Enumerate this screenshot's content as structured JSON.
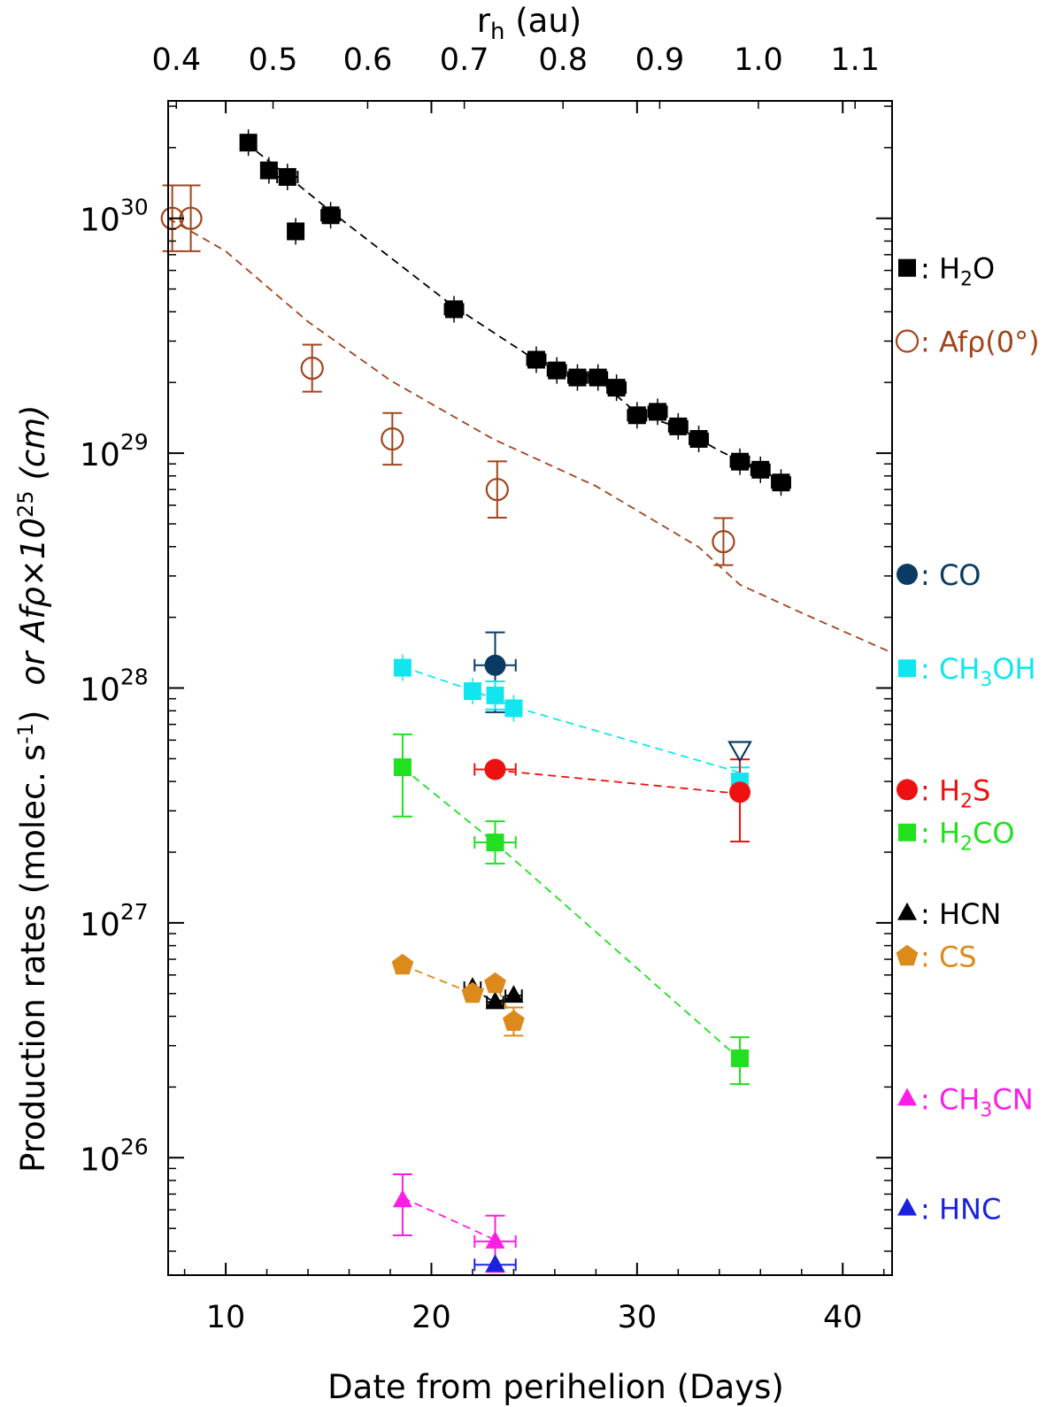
{
  "chart_data": {
    "type": "scatter",
    "xlabel": "Date from perihelion (Days)",
    "ylabel_main": "Production rates (molec. s",
    "ylabel_main_sup": "-1",
    "ylabel_main_end": ")",
    "ylabel_alt": "or Afρ×10",
    "ylabel_alt_sup": "25",
    "ylabel_alt_end": " (cm)",
    "top_xlabel": "r",
    "top_xlabel_sub": "h",
    "top_xlabel_end": " (au)",
    "xlim": [
      7.2,
      42.4
    ],
    "ylim_log10": [
      25.5,
      30.5
    ],
    "x_ticks": [
      {
        "value": 10,
        "label": "10"
      },
      {
        "value": 20,
        "label": "20"
      },
      {
        "value": 30,
        "label": "30"
      },
      {
        "value": 40,
        "label": "40"
      }
    ],
    "y_ticks": [
      {
        "exp": 26,
        "base": "10",
        "sup": "26"
      },
      {
        "exp": 27,
        "base": "10",
        "sup": "27"
      },
      {
        "exp": 28,
        "base": "10",
        "sup": "28"
      },
      {
        "exp": 29,
        "base": "10",
        "sup": "29"
      },
      {
        "exp": 30,
        "base": "10",
        "sup": "30"
      }
    ],
    "top_ticks": [
      {
        "x": 7.6,
        "label": "0.4"
      },
      {
        "x": 12.3,
        "label": "0.5"
      },
      {
        "x": 16.9,
        "label": "0.6"
      },
      {
        "x": 21.6,
        "label": "0.7"
      },
      {
        "x": 26.4,
        "label": "0.8"
      },
      {
        "x": 31.1,
        "label": "0.9"
      },
      {
        "x": 35.9,
        "label": "1.0"
      },
      {
        "x": 40.6,
        "label": "1.1"
      }
    ],
    "series": [
      {
        "name": "H2O",
        "label": ": H",
        "label_sub": "2",
        "label_end": "O",
        "legend_logy": 29.789,
        "color": "#000000",
        "marker": "square-filled",
        "line": [
          [
            11.0,
            30.32
          ],
          [
            13.0,
            30.18
          ],
          [
            15.1,
            30.03
          ],
          [
            21.0,
            29.63
          ],
          [
            25.0,
            29.4
          ],
          [
            28.0,
            29.32
          ],
          [
            30.0,
            29.17
          ],
          [
            32.0,
            29.11
          ],
          [
            34.0,
            29.01
          ],
          [
            37.1,
            28.88
          ]
        ],
        "points": [
          {
            "x": 11.1,
            "y": 2.1e+30,
            "xerr": 0.35
          },
          {
            "x": 12.1,
            "y": 1.6e+30,
            "xerr": 0.35
          },
          {
            "x": 13.0,
            "y": 1.5e+30,
            "xerr": 0.5
          },
          {
            "x": 13.4,
            "y": 8.8e+29,
            "xerr": 0.3
          },
          {
            "x": 15.1,
            "y": 1.03e+30,
            "xerr": 0.45
          },
          {
            "x": 21.1,
            "y": 4.1e+29,
            "xerr": 0.45
          },
          {
            "x": 25.1,
            "y": 2.5e+29,
            "xerr": 0.45
          },
          {
            "x": 26.1,
            "y": 2.25e+29,
            "xerr": 0.45
          },
          {
            "x": 27.1,
            "y": 2.1e+29,
            "xerr": 0.45
          },
          {
            "x": 28.1,
            "y": 2.1e+29,
            "xerr": 0.45
          },
          {
            "x": 29.0,
            "y": 1.9e+29,
            "xerr": 0.45
          },
          {
            "x": 30.0,
            "y": 1.45e+29,
            "xerr": 0.45
          },
          {
            "x": 31.0,
            "y": 1.5e+29,
            "xerr": 0.45
          },
          {
            "x": 32.0,
            "y": 1.3e+29,
            "xerr": 0.45
          },
          {
            "x": 33.0,
            "y": 1.15e+29,
            "xerr": 0.45
          },
          {
            "x": 35.0,
            "y": 9.2e+28,
            "xerr": 0.45
          },
          {
            "x": 36.0,
            "y": 8.5e+28,
            "xerr": 0.45
          },
          {
            "x": 37.0,
            "y": 7.5e+28,
            "xerr": 0.45
          }
        ]
      },
      {
        "name": "Afρ(0°)",
        "label": ": Afρ(0°)",
        "legend_logy": 29.477,
        "color": "#a0451c",
        "marker": "circle-open",
        "line": [
          [
            7.2,
            30.0
          ],
          [
            10.0,
            29.86
          ],
          [
            14.0,
            29.56
          ],
          [
            18.0,
            29.31
          ],
          [
            23.0,
            29.06
          ],
          [
            28.0,
            28.86
          ],
          [
            33.0,
            28.6
          ],
          [
            35.0,
            28.44
          ],
          [
            38.0,
            28.32
          ],
          [
            42.4,
            28.15
          ]
        ],
        "points": [
          {
            "x": 7.4,
            "y": 1e+30,
            "yerr": [
              0.14,
              0.14
            ]
          },
          {
            "x": 8.3,
            "y": 1e+30,
            "yerr": [
              0.14,
              0.14
            ]
          },
          {
            "x": 14.2,
            "y": 2.3e+29,
            "yerr": [
              0.1,
              0.1
            ]
          },
          {
            "x": 18.1,
            "y": 1.15e+29,
            "yerr": [
              0.11,
              0.11
            ]
          },
          {
            "x": 23.2,
            "y": 7e+28,
            "yerr": [
              0.12,
              0.12
            ]
          },
          {
            "x": 34.2,
            "y": 4.2e+28,
            "yerr": [
              0.1,
              0.1
            ]
          }
        ]
      },
      {
        "name": "CO",
        "label": ": CO",
        "legend_logy": 28.484,
        "color": "#0b3a63",
        "marker": "circle-filled",
        "points": [
          {
            "x": 23.1,
            "y": 1.25e+28,
            "xerr": 1.0,
            "yerr": [
              0.2,
              0.14
            ]
          }
        ]
      },
      {
        "name": "CH3OH",
        "label": ": CH",
        "label_sub": "3",
        "label_end": "OH",
        "legend_logy": 28.084,
        "color": "#11e6ee",
        "marker": "square-filled",
        "line": [
          [
            18.6,
            28.09
          ],
          [
            22.0,
            27.99
          ],
          [
            24.0,
            27.92
          ],
          [
            35.0,
            27.64
          ]
        ],
        "points": [
          {
            "x": 18.6,
            "y": 1.22e+28,
            "xerr": 0.3
          },
          {
            "x": 22.0,
            "y": 9.7e+27,
            "xerr": 0.3
          },
          {
            "x": 23.1,
            "y": 9.3e+27,
            "xerr": 0.3,
            "yerr": [
              0.06,
              0.06
            ]
          },
          {
            "x": 24.0,
            "y": 8.2e+27,
            "xerr": 0.3
          },
          {
            "x": 35.0,
            "y": 4e+27,
            "xerr": 0.3,
            "yerr": [
              0.06,
              0.06
            ]
          }
        ]
      },
      {
        "name": "H2S",
        "label": ": H",
        "label_sub": "2",
        "label_end": "S",
        "legend_logy": 27.567,
        "color": "#ee1111",
        "marker": "circle-filled",
        "line": [
          [
            23.1,
            27.65
          ],
          [
            35.0,
            27.55
          ]
        ],
        "points": [
          {
            "x": 23.1,
            "y": 4.5e+27,
            "xerr": 1.0
          },
          {
            "x": 35.0,
            "y": 3.6e+27,
            "yerr": [
              0.21,
              0.14
            ]
          }
        ]
      },
      {
        "name": "H2CO",
        "label": ": H",
        "label_sub": "2",
        "label_end": "CO",
        "legend_logy": 27.385,
        "color": "#20e020",
        "marker": "square-filled",
        "line": [
          [
            18.6,
            27.66
          ],
          [
            23.1,
            27.34
          ],
          [
            35.0,
            26.42
          ]
        ],
        "points": [
          {
            "x": 18.6,
            "y": 4.6e+27,
            "yerr": [
              0.21,
              0.14
            ]
          },
          {
            "x": 23.1,
            "y": 2.2e+27,
            "xerr": 1.0,
            "yerr": [
              0.09,
              0.09
            ]
          },
          {
            "x": 35.0,
            "y": 2.65e+26,
            "yerr": [
              0.11,
              0.09
            ]
          }
        ]
      },
      {
        "name": "HCN",
        "label": ": HCN",
        "legend_logy": 27.042,
        "color": "#000000",
        "marker": "triangle-filled",
        "line": [
          [
            22.0,
            26.72
          ],
          [
            23.1,
            26.66
          ],
          [
            24.0,
            26.69
          ]
        ],
        "points": [
          {
            "x": 22.0,
            "y": 5.3e+26,
            "xerr": 0.4
          },
          {
            "x": 23.1,
            "y": 4.6e+26,
            "xerr": 0.4
          },
          {
            "x": 24.0,
            "y": 4.9e+26,
            "xerr": 0.4
          }
        ]
      },
      {
        "name": "CS",
        "label": ": CS",
        "legend_logy": 26.858,
        "color": "#dc8a1c",
        "marker": "pentagon-filled",
        "line": [
          [
            18.6,
            26.82
          ],
          [
            22.0,
            26.7
          ],
          [
            23.1,
            26.74
          ],
          [
            24.0,
            26.58
          ]
        ],
        "points": [
          {
            "x": 18.6,
            "y": 6.6e+26,
            "xerr": 0.3
          },
          {
            "x": 22.0,
            "y": 5e+26,
            "xerr": 0.3
          },
          {
            "x": 23.1,
            "y": 5.5e+26,
            "xerr": 0.3
          },
          {
            "x": 24.0,
            "y": 3.8e+26,
            "yerr": [
              0.06,
              0.06
            ]
          }
        ]
      },
      {
        "name": "CH3CN",
        "label": ": CH",
        "label_sub": "3",
        "label_end": "CN",
        "legend_logy": 26.252,
        "color": "#ff1ee6",
        "marker": "triangle-filled",
        "line": [
          [
            18.6,
            25.83
          ],
          [
            23.1,
            25.65
          ]
        ],
        "points": [
          {
            "x": 18.6,
            "y": 6.6e+25,
            "yerr": [
              0.15,
              0.11
            ]
          },
          {
            "x": 23.1,
            "y": 4.4e+25,
            "xerr": 1.0,
            "yerr": [
              0.13,
              0.11
            ]
          }
        ]
      },
      {
        "name": "HNC",
        "label": ": HNC",
        "legend_logy": 25.784,
        "color": "#1a22e0",
        "marker": "triangle-filled",
        "points": [
          {
            "x": 23.1,
            "y": 3.5e+25,
            "xerr": 1.0
          }
        ]
      }
    ],
    "annotations": [
      {
        "type": "upper-limit-triangle",
        "x": 35.0,
        "y": 5.4e+27,
        "color": "#0b3a63"
      }
    ]
  }
}
